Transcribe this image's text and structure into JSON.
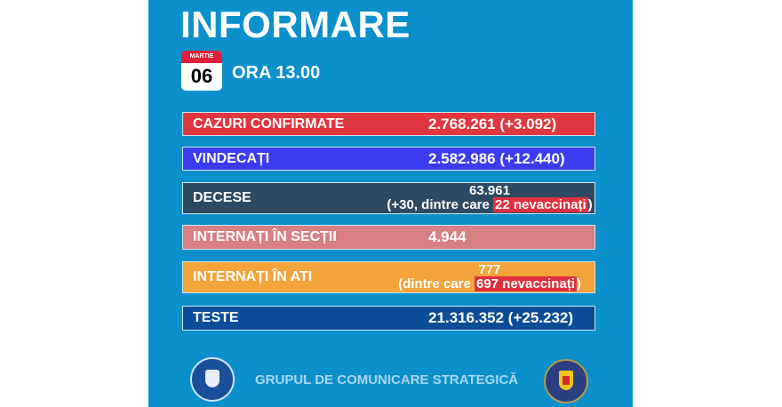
{
  "title": "INFORMARE",
  "date": {
    "month": "MARTIE",
    "day": "06"
  },
  "time": "ORA 13.00",
  "rows": [
    {
      "label": "CAZURI CONFIRMATE",
      "value": "2.768.261 (+3.092)",
      "color": "#e0363f"
    },
    {
      "label": "VINDECAȚI",
      "value": "2.582.986 (+12.440)",
      "color": "#3b3bef"
    },
    {
      "label": "DECESE",
      "value": "63.961",
      "detail_prefix": "(+30, dintre care ",
      "detail_highlight": "22 nevaccinați",
      "detail_suffix": ")",
      "color": "#2e4a62"
    },
    {
      "label": "INTERNAȚI ÎN SECȚII",
      "value": "4.944",
      "color": "#d77f83"
    },
    {
      "label": "INTERNAȚI ÎN ATI",
      "value": "777",
      "detail_prefix": "(dintre care ",
      "detail_highlight": "697 nevaccinați",
      "detail_suffix": ")",
      "color": "#f2a33a"
    },
    {
      "label": "TESTE",
      "value": "21.316.352 (+25.232)",
      "color": "#0b4d97"
    }
  ],
  "footer": "GRUPUL DE COMUNICARE STRATEGICĂ",
  "logos": {
    "left": "GUVERNUL ROMÂNIEI",
    "right": "MAI"
  }
}
